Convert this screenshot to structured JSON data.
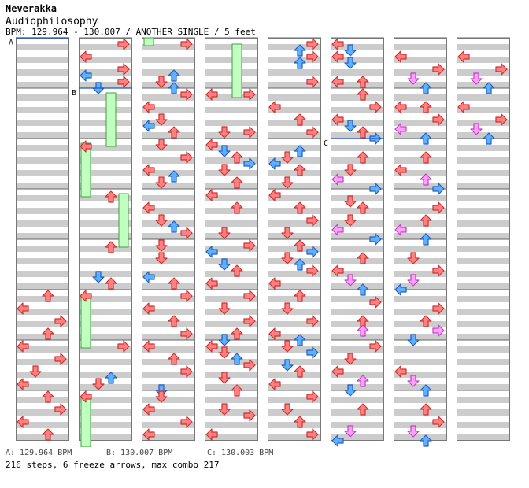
{
  "artist": "Neverakka",
  "title": "Audiophilosophy",
  "info": "BPM: 129.964 - 130.007 / ANOTHER SINGLE / 5 feet",
  "bpm_legend": {
    "a": "A: 129.964 BPM",
    "b": "B: 130.007 BPM",
    "c": "C: 130.003 BPM"
  },
  "stats": "216 steps, 6 freeze arrows, max combo 217",
  "markers": [
    "A",
    "B",
    "C"
  ],
  "colors": {
    "quarter": "#ff8080",
    "eighth": "#60b0ff",
    "sixteenth": "#ffa0ff",
    "freeze": "#c0ffc0",
    "stripe": "#cccccc"
  },
  "icons": {
    "left": "left-arrow-icon",
    "down": "down-arrow-icon",
    "up": "up-arrow-icon",
    "right": "right-arrow-icon"
  },
  "columns": 8,
  "measures_per_column": 8
}
